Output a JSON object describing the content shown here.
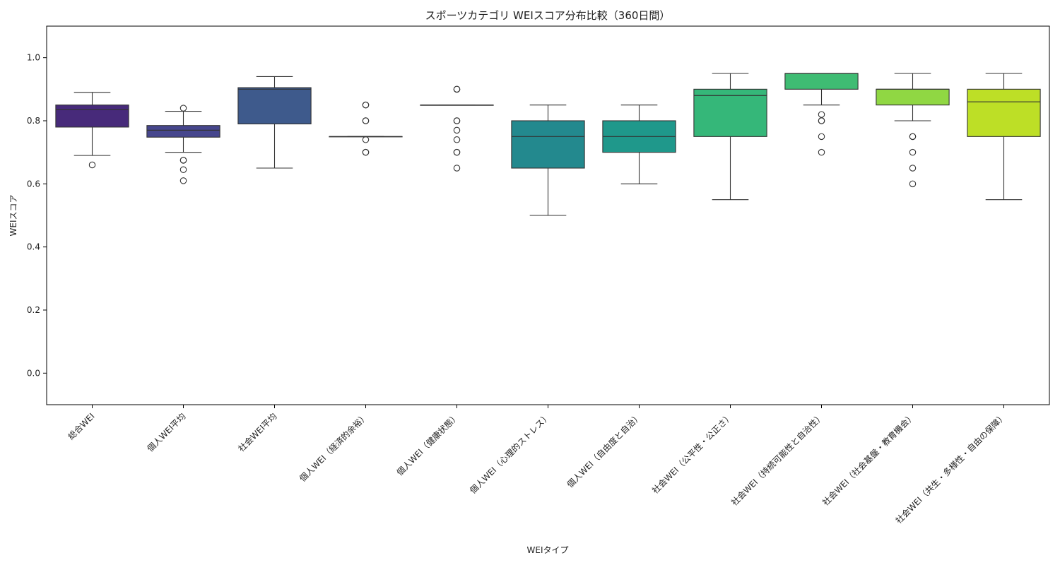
{
  "chart_data": {
    "type": "box",
    "title": "スポーツカテゴリ WEIスコア分布比較（360日間）",
    "xlabel": "WEIタイプ",
    "ylabel": "WEIスコア",
    "ylim": [
      -0.1,
      1.1
    ],
    "yticks": [
      0.0,
      0.2,
      0.4,
      0.6,
      0.8,
      1.0
    ],
    "ytick_labels": [
      "0.0",
      "0.2",
      "0.4",
      "0.6",
      "0.8",
      "1.0"
    ],
    "grid": false,
    "legend": "none",
    "categories": [
      "総合WEI",
      "個人WEI平均",
      "社会WEI平均",
      "個人WEI（経済的余裕）",
      "個人WEI（健康状態）",
      "個人WEI（心理的ストレス）",
      "個人WEI（自由度と自治）",
      "社会WEI（公平性・公正さ）",
      "社会WEI（持続可能性と自治性）",
      "社会WEI（社会基盤・教育機会）",
      "社会WEI（共生・多様性・自由の保障）"
    ],
    "colors": [
      "#472a7a",
      "#46468d",
      "#3e5a8c",
      "#33698e",
      "#2b7a8e",
      "#23898e",
      "#1f988b",
      "#35b779",
      "#3fbc73",
      "#90d743",
      "#bddf26"
    ],
    "boxes": [
      {
        "whisker_low": 0.69,
        "q1": 0.78,
        "median": 0.835,
        "q3": 0.85,
        "whisker_high": 0.89,
        "outliers": [
          0.66
        ]
      },
      {
        "whisker_low": 0.7,
        "q1": 0.748,
        "median": 0.77,
        "q3": 0.785,
        "whisker_high": 0.83,
        "outliers": [
          0.84,
          0.675,
          0.675,
          0.645,
          0.61
        ]
      },
      {
        "whisker_low": 0.65,
        "q1": 0.79,
        "median": 0.9,
        "q3": 0.905,
        "whisker_high": 0.94,
        "outliers": []
      },
      {
        "whisker_low": 0.75,
        "q1": 0.75,
        "median": 0.75,
        "q3": 0.75,
        "whisker_high": 0.75,
        "outliers": [
          0.85,
          0.85,
          0.8,
          0.8,
          0.74,
          0.7,
          0.7
        ]
      },
      {
        "whisker_low": 0.85,
        "q1": 0.85,
        "median": 0.85,
        "q3": 0.85,
        "whisker_high": 0.85,
        "outliers": [
          0.9,
          0.9,
          0.8,
          0.8,
          0.77,
          0.74,
          0.7,
          0.7,
          0.65
        ]
      },
      {
        "whisker_low": 0.5,
        "q1": 0.65,
        "median": 0.75,
        "q3": 0.8,
        "whisker_high": 0.85,
        "outliers": []
      },
      {
        "whisker_low": 0.6,
        "q1": 0.7,
        "median": 0.75,
        "q3": 0.8,
        "whisker_high": 0.85,
        "outliers": []
      },
      {
        "whisker_low": 0.55,
        "q1": 0.75,
        "median": 0.88,
        "q3": 0.9,
        "whisker_high": 0.95,
        "outliers": []
      },
      {
        "whisker_low": 0.85,
        "q1": 0.9,
        "median": 0.95,
        "q3": 0.95,
        "whisker_high": 0.95,
        "outliers": [
          0.82,
          0.8,
          0.8,
          0.75,
          0.7
        ]
      },
      {
        "whisker_low": 0.8,
        "q1": 0.85,
        "median": 0.9,
        "q3": 0.9,
        "whisker_high": 0.95,
        "outliers": [
          0.75,
          0.75,
          0.7,
          0.65,
          0.6
        ]
      },
      {
        "whisker_low": 0.55,
        "q1": 0.75,
        "median": 0.86,
        "q3": 0.9,
        "whisker_high": 0.95,
        "outliers": []
      }
    ]
  }
}
